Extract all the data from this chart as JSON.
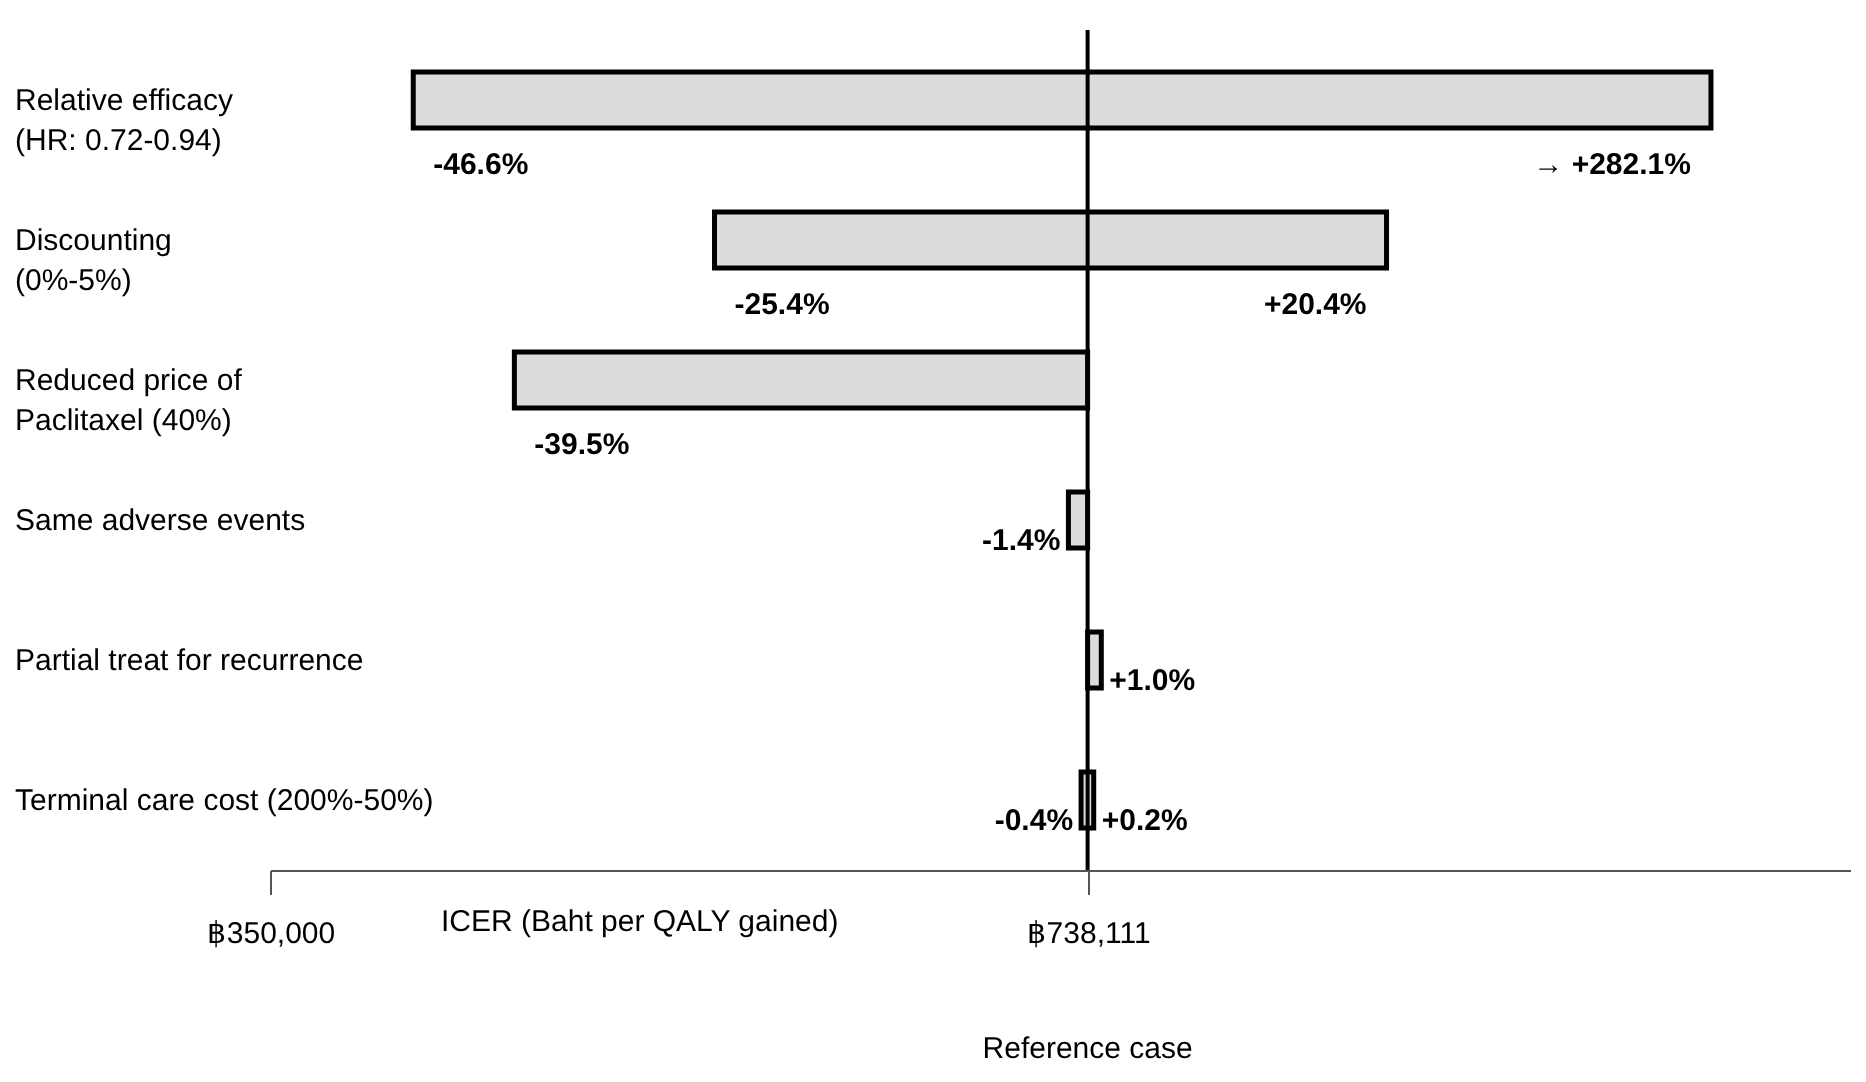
{
  "chart_data": {
    "type": "bar",
    "orientation": "horizontal",
    "xlabel": "ICER (Baht per QALY gained)",
    "categories": [
      "Relative efficacy\n(HR: 0.72-0.94)",
      "Discounting\n(0%-5%)",
      "Reduced price of\nPaclitaxel (40%)",
      "Same adverse events",
      "Partial treat for recurrence",
      "Terminal care cost (200%-50%)"
    ],
    "base": [
      418000,
      561000,
      466000,
      729000,
      738111,
      735000
    ],
    "values": [
      616000,
      319000,
      272111,
      9111,
      6500,
      6000
    ],
    "color": "#dcdcdc",
    "xlim": [
      350000,
      1100000
    ],
    "xticks": [
      {
        "value": 350000,
        "label": "฿350,000"
      },
      {
        "value": 738111,
        "label": "฿738,111"
      }
    ],
    "ref_lines": [
      {
        "axis": "x",
        "value": 738111,
        "label": "Reference case"
      }
    ],
    "annotations": [
      {
        "text": "-46.6%",
        "x": 418000,
        "y": "Relative efficacy\n(HR: 0.72-0.94)"
      },
      {
        "text": "→ +282.1%",
        "x": 1034000,
        "y": "Relative efficacy\n(HR: 0.72-0.94)"
      },
      {
        "text": "-25.4%",
        "x": 561000,
        "y": "Discounting\n(0%-5%)"
      },
      {
        "text": "+20.4%",
        "x": 880000,
        "y": "Discounting\n(0%-5%)"
      },
      {
        "text": "-39.5%",
        "x": 466000,
        "y": "Reduced price of\nPaclitaxel (40%)"
      },
      {
        "text": "-1.4%",
        "x": 729000,
        "y": "Same adverse events"
      },
      {
        "text": "+1.0%",
        "x": 744611,
        "y": "Partial treat for recurrence"
      },
      {
        "text": "-0.4%",
        "x": 735000,
        "y": "Terminal care cost (200%-50%)"
      },
      {
        "text": "+0.2%",
        "x": 741000,
        "y": "Terminal care cost (200%-50%)"
      }
    ]
  }
}
